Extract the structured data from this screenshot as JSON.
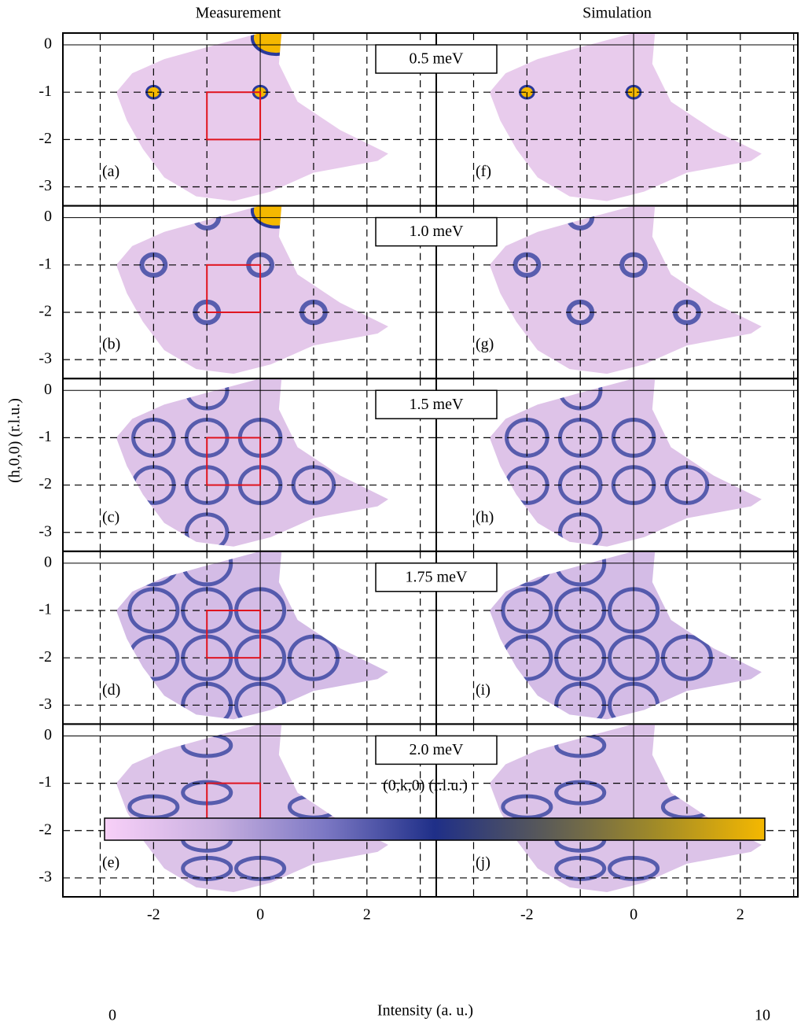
{
  "column_titles": [
    "Measurement",
    "Simulation"
  ],
  "chart_data": {
    "type": "heatmap-panels",
    "rows": [
      {
        "energy": "0.5 meV",
        "labels": [
          "(a)",
          "(f)"
        ]
      },
      {
        "energy": "1.0 meV",
        "labels": [
          "(b)",
          "(g)"
        ]
      },
      {
        "energy": "1.5 meV",
        "labels": [
          "(c)",
          "(h)"
        ]
      },
      {
        "energy": "1.75 meV",
        "labels": [
          "(d)",
          "(i)"
        ]
      },
      {
        "energy": "2.0 meV",
        "labels": [
          "(e)",
          "(j)"
        ]
      }
    ],
    "xlabel": "(0,k,0) (r.l.u.)",
    "ylabel": "(h,0,0) (r.l.u.)",
    "xlim": [
      -3.7,
      3.3
    ],
    "ylim": [
      -3.4,
      0.25
    ],
    "xticks": [
      -2,
      0,
      2
    ],
    "yticks": [
      0,
      -1,
      -2,
      -3
    ],
    "xgrid": [
      -3,
      -2,
      -1,
      0,
      1,
      2,
      3
    ],
    "highlight_box": {
      "x": [
        -1,
        0
      ],
      "y": [
        -2,
        -1
      ],
      "color": "#e0141e"
    },
    "colorbar": {
      "label": "Intensity (a. u.)",
      "lim": [
        0,
        10
      ],
      "colors": [
        "#f8d0f8",
        "#c9b0e0",
        "#7c78c4",
        "#1f2f88",
        "#5a5a58",
        "#a08a28",
        "#f5b800"
      ]
    }
  }
}
